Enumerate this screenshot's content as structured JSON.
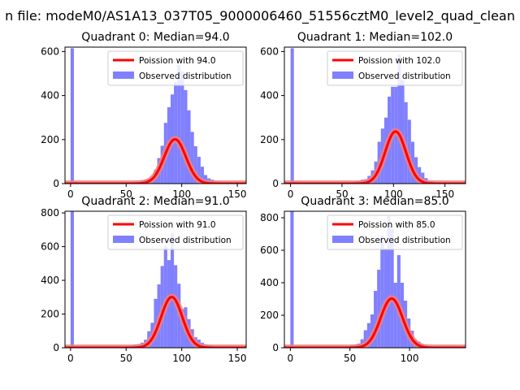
{
  "suptitle": "n file: modeM0/AS1A13_037T05_9000006460_51556cztM0_level2_quad_clean",
  "colors": {
    "bar": "#8080ff",
    "poisson": "#ff0000",
    "poisson_band": "#f08080"
  },
  "chart_data": [
    {
      "type": "bar",
      "title": "Quadrant 0: Median=94.0",
      "xlim": [
        -5,
        158
      ],
      "ylim": [
        0,
        620
      ],
      "xticks": [
        0,
        50,
        100,
        150
      ],
      "yticks": [
        0,
        200,
        400,
        600
      ],
      "legend": {
        "placement": "upper right",
        "line_label": "Poission with 94.0",
        "bar_label": "Observed distribution"
      },
      "poisson_mean": 94.0,
      "poisson_scale": 4900,
      "bins": {
        "start": 0,
        "width": 3.0
      },
      "values": [
        615,
        8,
        6,
        5,
        5,
        5,
        4,
        5,
        5,
        5,
        5,
        5,
        5,
        5,
        5,
        5,
        6,
        6,
        7,
        9,
        10,
        14,
        18,
        22,
        31,
        63,
        116,
        172,
        276,
        347,
        405,
        460,
        539,
        510,
        425,
        333,
        235,
        170,
        122,
        77,
        39,
        24,
        18,
        10,
        8,
        5,
        4,
        3,
        3,
        2,
        2
      ]
    },
    {
      "type": "bar",
      "title": "Quadrant 1: Median=102.0",
      "xlim": [
        -6,
        170
      ],
      "ylim": [
        0,
        620
      ],
      "xticks": [
        0,
        50,
        100,
        150
      ],
      "yticks": [
        0,
        200,
        400,
        600
      ],
      "legend": {
        "placement": "upper right",
        "line_label": "Poission with 102.0",
        "bar_label": "Observed distribution"
      },
      "poisson_mean": 102.0,
      "poisson_scale": 6000,
      "bins": {
        "start": 0,
        "width": 3.25
      },
      "values": [
        615,
        9,
        6,
        5,
        5,
        5,
        4,
        5,
        5,
        5,
        5,
        5,
        5,
        5,
        5,
        5,
        6,
        6,
        7,
        10,
        12,
        18,
        20,
        35,
        60,
        100,
        190,
        250,
        300,
        395,
        440,
        440,
        585,
        470,
        370,
        290,
        190,
        120,
        75,
        50,
        25,
        12,
        8,
        6,
        4,
        3,
        2,
        2,
        2,
        1,
        1
      ]
    },
    {
      "type": "bar",
      "title": "Quadrant 2: Median=91.0",
      "xlim": [
        -5,
        158
      ],
      "ylim": [
        0,
        810
      ],
      "xticks": [
        0,
        50,
        100,
        150
      ],
      "yticks": [
        0,
        200,
        400,
        600,
        800
      ],
      "legend": {
        "placement": "upper right",
        "line_label": "Poission with 91.0",
        "bar_label": "Observed distribution"
      },
      "poisson_mean": 91.0,
      "poisson_scale": 7200,
      "bins": {
        "start": 0,
        "width": 3.0
      },
      "values": [
        810,
        8,
        6,
        5,
        5,
        5,
        4,
        5,
        5,
        5,
        5,
        5,
        5,
        5,
        5,
        5,
        8,
        10,
        14,
        20,
        22,
        30,
        48,
        98,
        148,
        290,
        376,
        485,
        605,
        520,
        680,
        490,
        380,
        230,
        240,
        170,
        110,
        62,
        48,
        30,
        20,
        15,
        12,
        8,
        6,
        5,
        4,
        3,
        3,
        2,
        2
      ]
    },
    {
      "type": "bar",
      "title": "Quadrant 3: Median=85.0",
      "xlim": [
        -5,
        147
      ],
      "ylim": [
        0,
        840
      ],
      "xticks": [
        0,
        50,
        100
      ],
      "yticks": [
        0,
        200,
        400,
        600,
        800
      ],
      "legend": {
        "placement": "upper right",
        "line_label": "Poission with 85.0",
        "bar_label": "Observed distribution"
      },
      "poisson_mean": 85.0,
      "poisson_scale": 7000,
      "bins": {
        "start": 0,
        "width": 2.8
      },
      "values": [
        840,
        8,
        6,
        5,
        5,
        5,
        4,
        5,
        5,
        5,
        5,
        5,
        5,
        5,
        5,
        5,
        8,
        10,
        14,
        20,
        26,
        52,
        108,
        152,
        205,
        350,
        480,
        690,
        610,
        810,
        730,
        400,
        570,
        400,
        290,
        180,
        105,
        48,
        38,
        22,
        15,
        10,
        7,
        5,
        4,
        3,
        3,
        2,
        2,
        1,
        1
      ]
    }
  ]
}
